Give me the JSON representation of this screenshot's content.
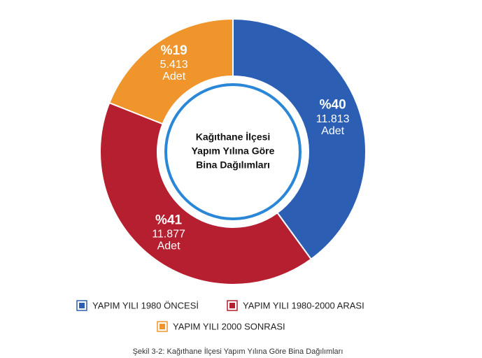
{
  "chart_data": {
    "type": "donut",
    "title": [
      "Kağıthane İlçesi",
      "Yapım Yılına Göre",
      "Bina Dağılımları"
    ],
    "categories": [
      "YAPIM YILI 1980 ÖNCESİ",
      "YAPIM YILI 1980-2000 ARASI",
      "YAPIM YILI 2000 SONRASI"
    ],
    "values": [
      40,
      41,
      19
    ],
    "value_labels": [
      "%40",
      "%41",
      "%19"
    ],
    "counts": [
      "11.813",
      "11.877",
      "5.413"
    ],
    "unit": "Adet",
    "colors": [
      "#2c5fb4",
      "#b51f2f",
      "#f0952c"
    ],
    "caption": "Şekil 3-2: Kağıthane İlçesi Yapım Yılına Göre Bina Dağılımları"
  }
}
